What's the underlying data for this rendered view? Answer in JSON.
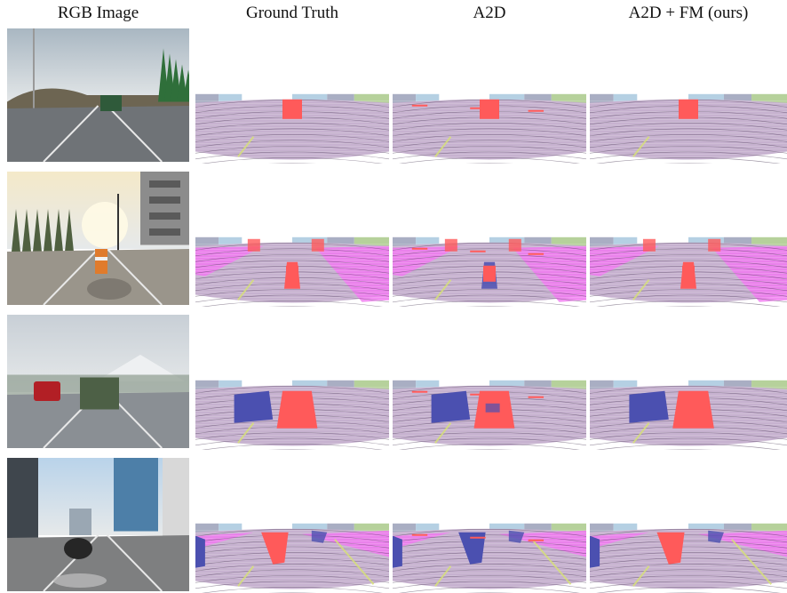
{
  "columns": [
    {
      "label": "RGB Image"
    },
    {
      "label": "Ground Truth"
    },
    {
      "label": "A2D"
    },
    {
      "label": "A2D + FM (ours)"
    }
  ],
  "rows": [
    {
      "scene": "highway",
      "objects": [
        "dumpster"
      ],
      "sky_color": "#a9b7c2",
      "road_color": "#6f7377",
      "accent": "#2f6f3a"
    },
    {
      "scene": "sunlit street",
      "objects": [
        "traffic-barrel"
      ],
      "sky_color": "#f4e9c9",
      "road_color": "#9a958b",
      "accent": "#4f6040"
    },
    {
      "scene": "foggy road",
      "objects": [
        "red-suv",
        "dumpster"
      ],
      "sky_color": "#c8cfd6",
      "road_color": "#8a8f94",
      "accent": "#8d9b8f"
    },
    {
      "scene": "city street",
      "objects": [
        "small-cart"
      ],
      "sky_color": "#b9d3ea",
      "road_color": "#7e7f80",
      "accent": "#5b6a7a"
    }
  ],
  "palette": {
    "road": "#c6b1cf",
    "sidewalk": "#f078f0",
    "vehicle": "#ff5a5a",
    "car": "#4b50b0",
    "vegetation": "#a9c98a",
    "sky_region": "#a8c8de",
    "building": "#9aa0b8",
    "lane_marking": "#d6e07a"
  }
}
